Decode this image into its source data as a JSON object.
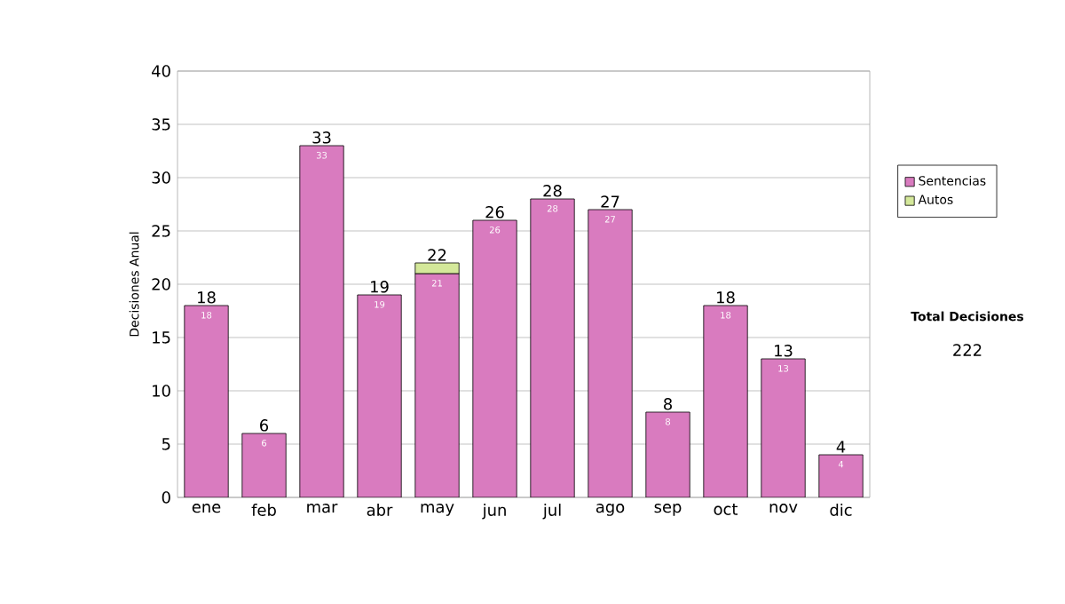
{
  "chart_data": {
    "type": "bar",
    "stacked": true,
    "ylabel": "Decisiones Anual",
    "categories": [
      "ene",
      "feb",
      "mar",
      "abr",
      "may",
      "jun",
      "jul",
      "ago",
      "sep",
      "oct",
      "nov",
      "dic"
    ],
    "series": [
      {
        "name": "Sentencias",
        "color": "#d97bbf",
        "values": [
          18,
          6,
          33,
          19,
          21,
          26,
          28,
          27,
          8,
          18,
          13,
          4
        ],
        "value_labels": [
          "18",
          "6",
          "33",
          "19",
          "21",
          "26",
          "28",
          "27",
          "8",
          "18",
          "13",
          "4"
        ]
      },
      {
        "name": "Autos",
        "color": "#d4e89a",
        "values": [
          null,
          null,
          null,
          null,
          1,
          null,
          null,
          null,
          null,
          null,
          null,
          null
        ]
      }
    ],
    "totals": [
      "18",
      "6",
      "33",
      "19",
      "22",
      "26",
      "28",
      "27",
      "8",
      "18",
      "13",
      "4"
    ],
    "ylim": [
      0,
      40
    ],
    "yticks": [
      0,
      5,
      10,
      15,
      20,
      25,
      30,
      35,
      40
    ],
    "grid": "y",
    "legend": "right",
    "annotations": [
      "Total Decisiones",
      "222"
    ]
  }
}
